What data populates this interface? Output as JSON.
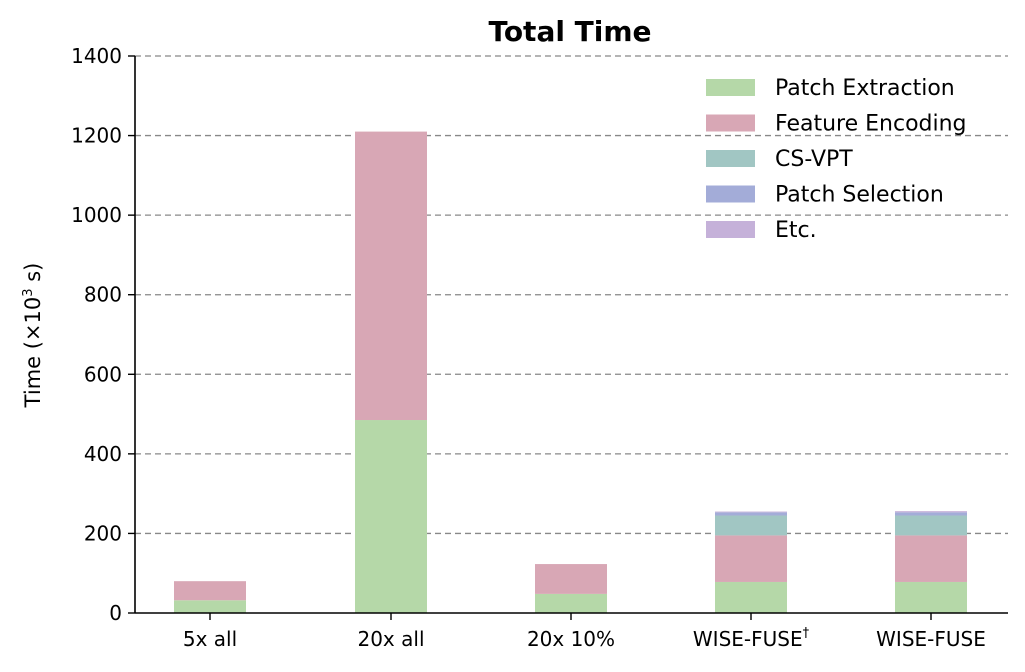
{
  "chart_data": {
    "type": "bar",
    "stacked": true,
    "title": "Total Time",
    "ylabel": {
      "prefix": "Time (×10",
      "superscript": "3",
      "suffix": " s)"
    },
    "xlabel": "",
    "ylim": [
      0,
      1400
    ],
    "yticks": [
      0,
      200,
      400,
      600,
      800,
      1000,
      1200,
      1400
    ],
    "grid": "horizontal dashed",
    "legend_position": "top-right",
    "categories": [
      {
        "label": "5x all",
        "superscript": ""
      },
      {
        "label": "20x all",
        "superscript": ""
      },
      {
        "label": "20x 10%",
        "superscript": ""
      },
      {
        "label": "WISE-FUSE",
        "superscript": "†"
      },
      {
        "label": "WISE-FUSE",
        "superscript": ""
      }
    ],
    "series": [
      {
        "name": "Patch Extraction",
        "color": "#b5d8a8",
        "values": [
          32,
          485,
          48,
          78,
          78
        ]
      },
      {
        "name": "Feature Encoding",
        "color": "#d8a7b5",
        "values": [
          48,
          725,
          75,
          117,
          117
        ]
      },
      {
        "name": "CS-VPT",
        "color": "#a1c6c3",
        "values": [
          0,
          0,
          0,
          50,
          50
        ]
      },
      {
        "name": "Patch Selection",
        "color": "#a3acd8",
        "values": [
          0,
          0,
          0,
          8,
          8
        ]
      },
      {
        "name": "Etc.",
        "color": "#c5b1d9",
        "values": [
          0,
          0,
          0,
          2,
          3
        ]
      }
    ]
  }
}
